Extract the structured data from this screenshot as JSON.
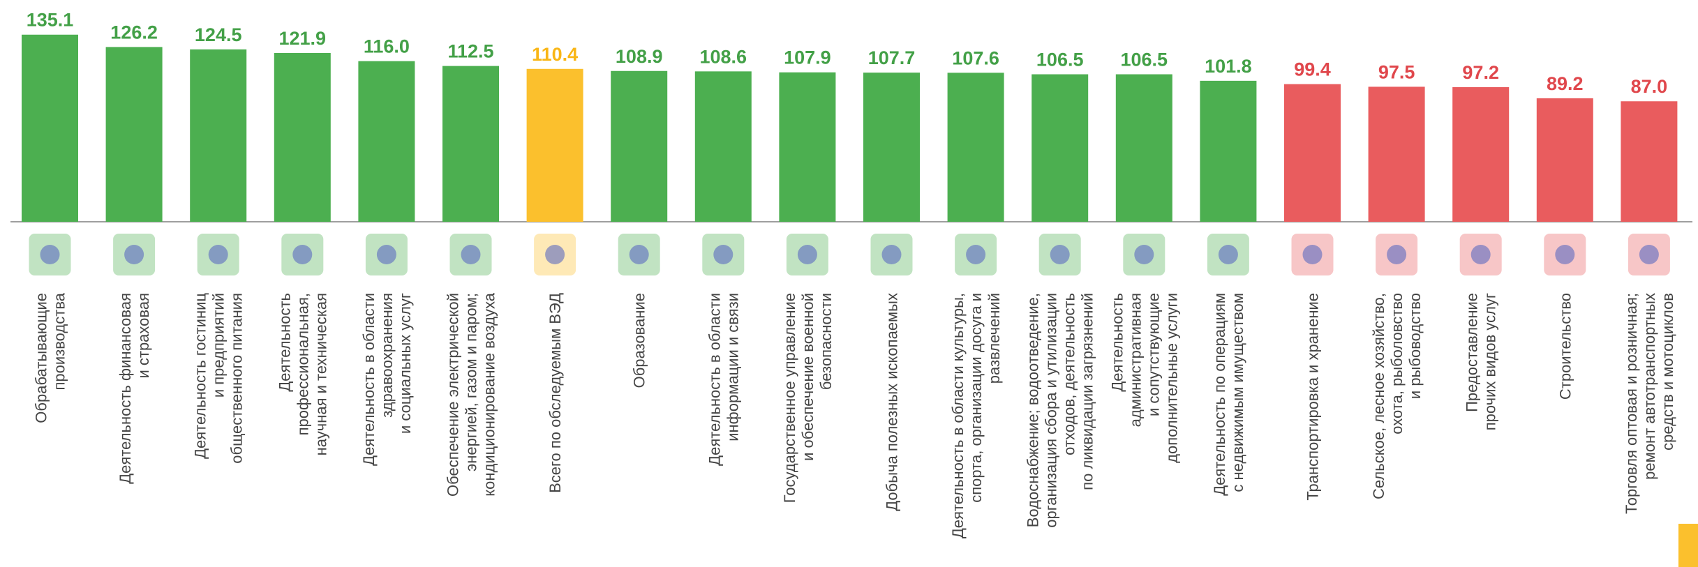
{
  "chart_data": {
    "type": "bar",
    "categories": [
      "Обрабатывающие\nпроизводства",
      "Деятельность финансовая\nи страховая",
      "Деятельность гостиниц\nи предприятий\nобщественного питания",
      "Деятельность\nпрофессиональная,\nнаучная и техническая",
      "Деятельность в области\nздравоохранения\nи социальных услуг",
      "Обеспечение электрической\nэнергией, газом и паром;\nкондиционирование воздуха",
      "Всего по обследуемым ВЭД",
      "Образование",
      "Деятельность в области\nинформации и связи",
      "Государственное управление\nи обеспечение военной\nбезопасности",
      "Добыча полезных ископаемых",
      "Деятельность в области культуры,\nспорта, организации досуга  и\nразвлечений",
      "Водоснабжение; водоотведение,\nорганизация сбора и утилизации\nотходов, деятельность\nпо ликвидации загрязнений",
      "Деятельность\nадминистративная\nи сопутствующие\nдополнительные услуги",
      "Деятельность по операциям\nс недвижимым имуществом",
      "Транспортировка и хранение",
      "Сельское, лесное хозяйство,\nохота, рыболовство\nи рыбоводство",
      "Предоставление\nпрочих видов услуг",
      "Строительство",
      "Торговля оптовая и розничная;\nремонт автотранспортных\nсредств и мотоциклов"
    ],
    "values": [
      135.1,
      126.2,
      124.5,
      121.9,
      116.0,
      112.5,
      110.4,
      108.9,
      108.6,
      107.9,
      107.7,
      107.6,
      106.5,
      106.5,
      101.8,
      99.4,
      97.5,
      97.2,
      89.2,
      87.0
    ],
    "value_labels": [
      "135.1",
      "126.2",
      "124.5",
      "121.9",
      "116.0",
      "112.5",
      "110.4",
      "108.9",
      "108.6",
      "107.9",
      "107.7",
      "107.6",
      "106.5",
      "106.5",
      "101.8",
      "99.4",
      "97.5",
      "97.2",
      "89.2",
      "87.0"
    ],
    "colors": [
      "#4caf50",
      "#4caf50",
      "#4caf50",
      "#4caf50",
      "#4caf50",
      "#4caf50",
      "#fbc02d",
      "#4caf50",
      "#4caf50",
      "#4caf50",
      "#4caf50",
      "#4caf50",
      "#4caf50",
      "#4caf50",
      "#4caf50",
      "#e95c5e",
      "#e95c5e",
      "#e95c5e",
      "#e95c5e",
      "#e95c5e"
    ],
    "label_colors": [
      "#43a047",
      "#43a047",
      "#43a047",
      "#43a047",
      "#43a047",
      "#43a047",
      "#f9b616",
      "#43a047",
      "#43a047",
      "#43a047",
      "#43a047",
      "#43a047",
      "#43a047",
      "#43a047",
      "#43a047",
      "#e0474c",
      "#e0474c",
      "#e0474c",
      "#e0474c",
      "#e0474c"
    ],
    "ylim": [
      0,
      140
    ]
  }
}
